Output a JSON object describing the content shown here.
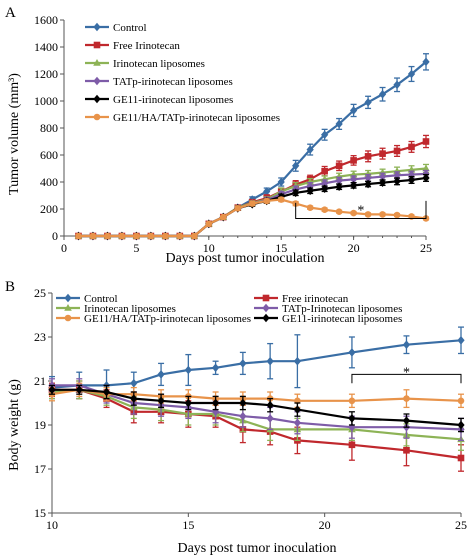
{
  "figure": {
    "panels": [
      "A",
      "B"
    ]
  },
  "chart_data": [
    {
      "panel": "A",
      "type": "line",
      "xlabel": "Days post tumor inoculation",
      "ylabel": "Tumor  volume (mm³)",
      "xlim": [
        0,
        25
      ],
      "ylim": [
        0,
        1600
      ],
      "xticks": [
        0,
        5,
        10,
        15,
        20,
        25
      ],
      "yticks": [
        0,
        200,
        400,
        600,
        800,
        1000,
        1200,
        1400,
        1600
      ],
      "legend_position": "top-left",
      "grid": false,
      "annotation": "*",
      "bracket": {
        "x1": 16,
        "x2": 25,
        "y_top": 245,
        "y_bottom": 130
      },
      "series": [
        {
          "name": "Control",
          "color": "#3a6ea5",
          "marker": "diamond",
          "x": [
            1,
            2,
            3,
            4,
            5,
            6,
            7,
            8,
            9,
            10,
            11,
            12,
            13,
            14,
            15,
            16,
            17,
            18,
            19,
            20,
            21,
            22,
            23,
            24,
            25
          ],
          "values": [
            0,
            0,
            0,
            0,
            0,
            0,
            0,
            0,
            0,
            90,
            140,
            210,
            270,
            330,
            400,
            520,
            640,
            750,
            830,
            930,
            990,
            1050,
            1120,
            1200,
            1290
          ],
          "err": [
            0,
            0,
            0,
            0,
            0,
            0,
            0,
            0,
            0,
            8,
            12,
            15,
            20,
            25,
            30,
            40,
            40,
            40,
            40,
            45,
            45,
            50,
            50,
            55,
            60
          ]
        },
        {
          "name": "Free Irinotecan",
          "color": "#c0282d",
          "marker": "square",
          "x": [
            1,
            2,
            3,
            4,
            5,
            6,
            7,
            8,
            9,
            10,
            11,
            12,
            13,
            14,
            15,
            16,
            17,
            18,
            19,
            20,
            21,
            22,
            23,
            24,
            25
          ],
          "values": [
            0,
            0,
            0,
            0,
            0,
            0,
            0,
            0,
            0,
            90,
            140,
            210,
            250,
            280,
            330,
            380,
            420,
            480,
            520,
            560,
            590,
            610,
            630,
            660,
            700
          ],
          "err": [
            0,
            0,
            0,
            0,
            0,
            0,
            0,
            0,
            0,
            8,
            10,
            15,
            20,
            25,
            25,
            30,
            30,
            35,
            35,
            35,
            40,
            40,
            40,
            40,
            45
          ]
        },
        {
          "name": "Irinotecan liposomes",
          "color": "#8db356",
          "marker": "triangle",
          "x": [
            1,
            2,
            3,
            4,
            5,
            6,
            7,
            8,
            9,
            10,
            11,
            12,
            13,
            14,
            15,
            16,
            17,
            18,
            19,
            20,
            21,
            22,
            23,
            24,
            25
          ],
          "values": [
            0,
            0,
            0,
            0,
            0,
            0,
            0,
            0,
            0,
            90,
            140,
            210,
            245,
            270,
            330,
            370,
            400,
            420,
            440,
            455,
            460,
            470,
            480,
            490,
            500
          ],
          "err": [
            0,
            0,
            0,
            0,
            0,
            0,
            0,
            0,
            0,
            8,
            10,
            12,
            15,
            20,
            25,
            25,
            25,
            25,
            25,
            25,
            25,
            25,
            30,
            30,
            30
          ]
        },
        {
          "name": "TATp-irinotecan liposomes",
          "color": "#7e5ca8",
          "marker": "diamond",
          "x": [
            1,
            2,
            3,
            4,
            5,
            6,
            7,
            8,
            9,
            10,
            11,
            12,
            13,
            14,
            15,
            16,
            17,
            18,
            19,
            20,
            21,
            22,
            23,
            24,
            25
          ],
          "values": [
            0,
            0,
            0,
            0,
            0,
            0,
            0,
            0,
            0,
            90,
            140,
            205,
            240,
            265,
            310,
            345,
            370,
            390,
            410,
            420,
            430,
            440,
            450,
            455,
            460
          ],
          "err": [
            0,
            0,
            0,
            0,
            0,
            0,
            0,
            0,
            0,
            8,
            10,
            12,
            15,
            20,
            20,
            25,
            25,
            25,
            25,
            25,
            25,
            25,
            25,
            25,
            25
          ]
        },
        {
          "name": "GE11-irinotecan liposomes",
          "color": "#000000",
          "marker": "diamond",
          "x": [
            1,
            2,
            3,
            4,
            5,
            6,
            7,
            8,
            9,
            10,
            11,
            12,
            13,
            14,
            15,
            16,
            17,
            18,
            19,
            20,
            21,
            22,
            23,
            24,
            25
          ],
          "values": [
            0,
            0,
            0,
            0,
            0,
            0,
            0,
            0,
            0,
            90,
            140,
            205,
            235,
            260,
            290,
            320,
            335,
            350,
            365,
            375,
            385,
            395,
            405,
            415,
            430
          ],
          "err": [
            0,
            0,
            0,
            0,
            0,
            0,
            0,
            0,
            0,
            8,
            10,
            12,
            15,
            18,
            20,
            20,
            20,
            20,
            20,
            20,
            20,
            20,
            25,
            25,
            25
          ]
        },
        {
          "name": "GE11/HA/TATp-irinotecan liposomes",
          "color": "#e8934a",
          "marker": "circle",
          "x": [
            1,
            2,
            3,
            4,
            5,
            6,
            7,
            8,
            9,
            10,
            11,
            12,
            13,
            14,
            15,
            16,
            17,
            18,
            19,
            20,
            21,
            22,
            23,
            24,
            25
          ],
          "values": [
            0,
            0,
            0,
            0,
            0,
            0,
            0,
            0,
            0,
            90,
            140,
            205,
            240,
            260,
            270,
            240,
            210,
            195,
            180,
            170,
            160,
            160,
            155,
            145,
            130
          ],
          "err": [
            0,
            0,
            0,
            0,
            0,
            0,
            0,
            0,
            0,
            8,
            10,
            12,
            15,
            15,
            15,
            15,
            12,
            12,
            10,
            10,
            10,
            10,
            10,
            10,
            10
          ]
        }
      ]
    },
    {
      "panel": "B",
      "type": "line",
      "xlabel": "Days post tumor inoculation",
      "ylabel": "Body weight (g)",
      "xlim": [
        10,
        25
      ],
      "ylim": [
        15,
        25
      ],
      "xticks": [
        10,
        15,
        20,
        25
      ],
      "yticks": [
        15,
        17,
        19,
        21,
        23,
        25
      ],
      "legend_position": "top",
      "grid": false,
      "annotation": "*",
      "bracket": {
        "x1": 21,
        "x2": 25,
        "y_top": 21.3,
        "y_bottom": 20.9
      },
      "series": [
        {
          "name": "Control",
          "color": "#3a6ea5",
          "marker": "diamond",
          "x": [
            10,
            11,
            12,
            13,
            14,
            15,
            16,
            17,
            18,
            19,
            21,
            23,
            25
          ],
          "values": [
            20.7,
            20.8,
            20.8,
            20.9,
            21.3,
            21.5,
            21.6,
            21.8,
            21.9,
            21.9,
            22.3,
            22.65,
            22.85
          ],
          "err": [
            0.5,
            0.6,
            0.7,
            0.5,
            0.5,
            0.7,
            0.3,
            0.5,
            0.8,
            1.2,
            0.7,
            0.4,
            0.6
          ]
        },
        {
          "name": "Free irinotecan",
          "color": "#c0282d",
          "marker": "square",
          "x": [
            10,
            11,
            12,
            13,
            14,
            15,
            16,
            17,
            18,
            19,
            21,
            23,
            25
          ],
          "values": [
            20.6,
            20.6,
            20.2,
            19.6,
            19.6,
            19.5,
            19.4,
            18.8,
            18.7,
            18.3,
            18.1,
            17.85,
            17.5
          ],
          "err": [
            0.3,
            0.4,
            0.4,
            0.5,
            0.5,
            0.6,
            0.5,
            0.6,
            0.6,
            0.6,
            0.7,
            0.7,
            0.6
          ]
        },
        {
          "name": "Irinotecan liposomes",
          "color": "#8db356",
          "marker": "triangle",
          "x": [
            10,
            11,
            12,
            13,
            14,
            15,
            16,
            17,
            18,
            19,
            21,
            23,
            25
          ],
          "values": [
            20.5,
            20.6,
            20.3,
            19.8,
            19.7,
            19.5,
            19.5,
            19.2,
            18.8,
            18.8,
            18.8,
            18.55,
            18.35
          ],
          "err": [
            0.3,
            0.4,
            0.4,
            0.5,
            0.5,
            0.5,
            0.5,
            0.5,
            0.5,
            0.5,
            0.5,
            0.5,
            0.5
          ]
        },
        {
          "name": "TATp-Irinotecan liposomes",
          "color": "#7e5ca8",
          "marker": "diamond",
          "x": [
            10,
            11,
            12,
            13,
            14,
            15,
            16,
            17,
            18,
            19,
            21,
            23,
            25
          ],
          "values": [
            20.8,
            20.8,
            20.4,
            20.0,
            19.9,
            19.8,
            19.6,
            19.4,
            19.3,
            19.1,
            18.9,
            18.9,
            18.8
          ],
          "err": [
            0.3,
            0.3,
            0.4,
            0.5,
            0.5,
            0.5,
            0.5,
            0.5,
            0.5,
            0.5,
            0.5,
            0.5,
            0.5
          ]
        },
        {
          "name": "GE11/HA/TATp-irinotecan liposomes",
          "color": "#e8934a",
          "marker": "circle",
          "x": [
            10,
            11,
            12,
            13,
            14,
            15,
            16,
            17,
            18,
            19,
            21,
            23,
            25
          ],
          "values": [
            20.4,
            20.6,
            20.4,
            20.4,
            20.3,
            20.3,
            20.2,
            20.2,
            20.2,
            20.1,
            20.1,
            20.2,
            20.1
          ],
          "err": [
            0.3,
            0.3,
            0.3,
            0.3,
            0.3,
            0.3,
            0.3,
            0.3,
            0.3,
            0.3,
            0.3,
            0.4,
            0.3
          ]
        },
        {
          "name": "GE11-irinotecan liposomes",
          "color": "#000000",
          "marker": "diamond",
          "x": [
            10,
            11,
            12,
            13,
            14,
            15,
            16,
            17,
            18,
            19,
            21,
            23,
            25
          ],
          "values": [
            20.6,
            20.6,
            20.5,
            20.2,
            20.1,
            20.0,
            20.0,
            20.0,
            19.9,
            19.7,
            19.3,
            19.2,
            19.0
          ],
          "err": [
            0.2,
            0.2,
            0.3,
            0.3,
            0.3,
            0.3,
            0.3,
            0.3,
            0.3,
            0.3,
            0.3,
            0.3,
            0.3
          ]
        }
      ]
    }
  ]
}
